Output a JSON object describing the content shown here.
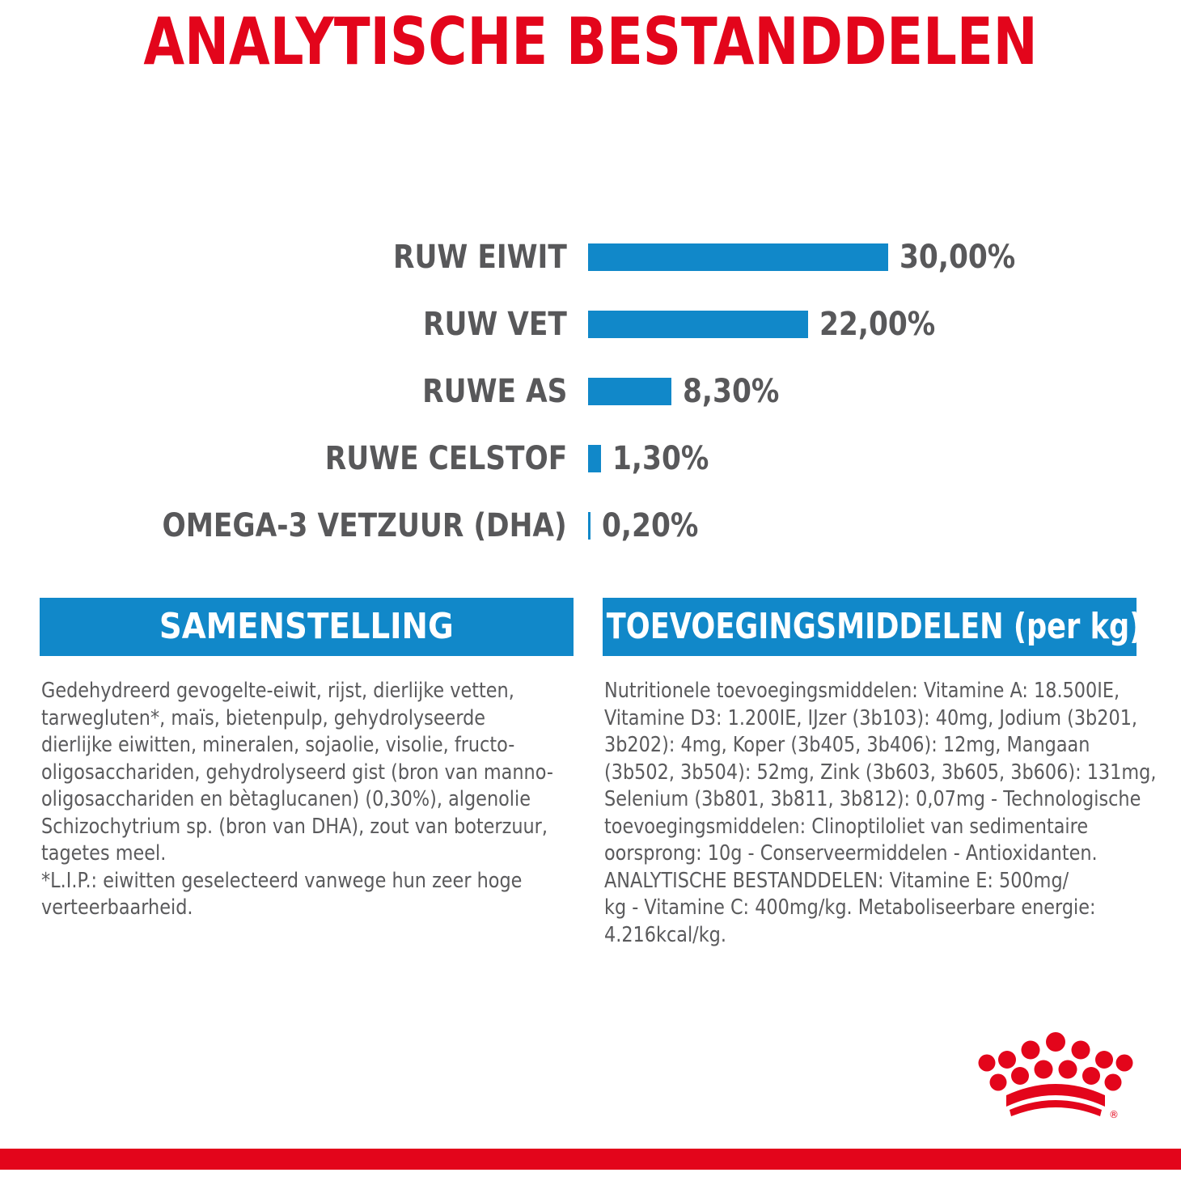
{
  "title": "ANALYTISCHE BESTANDDELEN",
  "colors": {
    "brand_red": "#e3051b",
    "bar_blue": "#1188c9",
    "text_gray": "#58585a"
  },
  "chart_data": {
    "type": "bar",
    "orientation": "horizontal",
    "title": "ANALYTISCHE BESTANDDELEN",
    "categories": [
      "RUW EIWIT",
      "RUW VET",
      "RUWE AS",
      "RUWE CELSTOF",
      "OMEGA-3 VETZUUR (DHA)"
    ],
    "values": [
      30.0,
      22.0,
      8.3,
      1.3,
      0.2
    ],
    "value_labels": [
      "30,00%",
      "22,00%",
      "8,30%",
      "1,30%",
      "0,20%"
    ],
    "unit": "%",
    "xlim": [
      0,
      30
    ],
    "grid": false,
    "legend": "none"
  },
  "samenstelling": {
    "header": "SAMENSTELLING",
    "lines": [
      "Gedehydreerd gevogelte-eiwit, rijst, dierlijke vetten,",
      "tarwegluten*, maïs, bietenpulp, gehydrolyseerde",
      "dierlijke eiwitten, mineralen, sojaolie, visolie, fructo-",
      "oligosacchariden, gehydrolyseerd gist (bron van manno-",
      "oligosacchariden en bètaglucanen) (0,30%), algenolie",
      "Schizochytrium sp. (bron van DHA), zout van boterzuur,",
      "tagetes meel.",
      "*L.I.P.: eiwitten geselecteerd vanwege hun zeer hoge",
      "verteerbaarheid."
    ]
  },
  "toevoegingsmiddelen": {
    "header": "TOEVOEGINGSMIDDELEN (per kg)",
    "lines": [
      "Nutritionele toevoegingsmiddelen: Vitamine A: 18.500IE,",
      "Vitamine D3: 1.200IE, IJzer (3b103): 40mg, Jodium (3b201,",
      "3b202): 4mg, Koper (3b405, 3b406): 12mg, Mangaan",
      "(3b502, 3b504): 52mg, Zink (3b603, 3b605, 3b606): 131mg,",
      "Selenium (3b801, 3b811, 3b812): 0,07mg - Technologische",
      "toevoegingsmiddelen: Clinoptiloliet van sedimentaire",
      "oorsprong: 10g - Conserveermiddelen - Antioxidanten.",
      "ANALYTISCHE BESTANDDELEN: Vitamine E: 500mg/",
      "kg - Vitamine C: 400mg/kg. Metaboliseerbare energie:",
      "4.216kcal/kg."
    ]
  },
  "logo": {
    "icon": "royal-canin-crown-icon",
    "trademark": "®"
  }
}
